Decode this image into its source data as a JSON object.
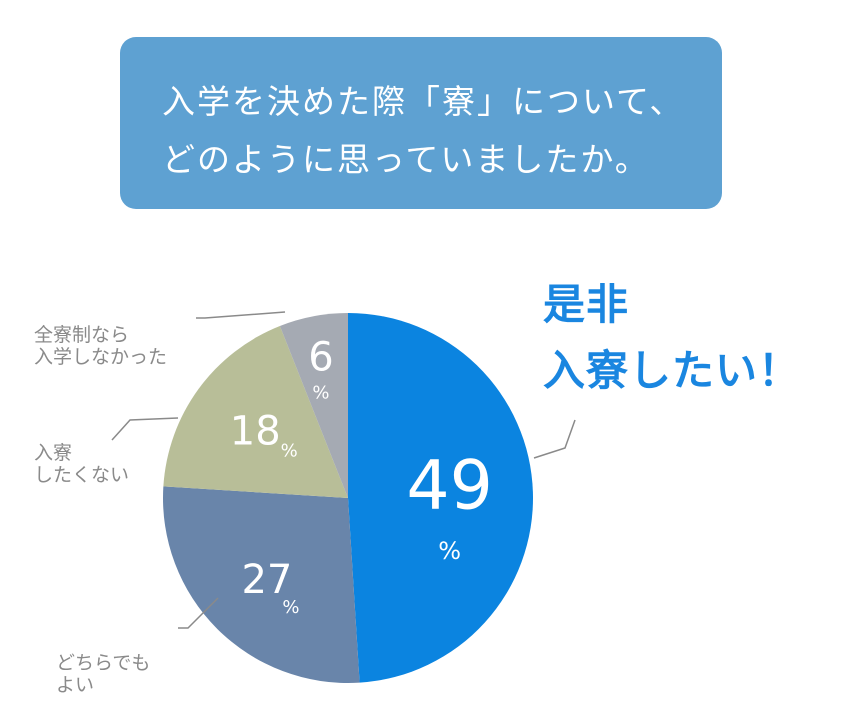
{
  "question": {
    "line1": "入学を決めた際「寮」について、",
    "line2": "どのように思っていましたか。"
  },
  "highlight": {
    "line1": "是非",
    "line2": "入寮したい！"
  },
  "colors": {
    "question_bg": "#5ea1d2",
    "highlight_text": "#1a86e0",
    "label_text": "#8a8a8a"
  },
  "chart_data": {
    "type": "pie",
    "start": "12 o'clock, clockwise",
    "slices": [
      {
        "value": 49,
        "number": "49",
        "unit": "%",
        "label": "",
        "color": "#0b84e0"
      },
      {
        "value": 27,
        "number": "27",
        "unit": "%",
        "label": "どちらでもよい",
        "color": "#6985aa"
      },
      {
        "value": 18,
        "number": "18",
        "unit": "%",
        "label": "入寮したくない",
        "color": "#b8be98"
      },
      {
        "value": 6,
        "number": "6",
        "unit": "%",
        "label": "全寮制なら入学しなかった",
        "color": "#a5aab3"
      }
    ]
  },
  "labels": {
    "zenryo_line1": "全寮制なら",
    "zenryo_line2": "入学しなかった",
    "nyuryo_line1": "入寮",
    "nyuryo_line2": "したくない",
    "dochira_line1": "どちらでも",
    "dochira_line2": "よい"
  }
}
